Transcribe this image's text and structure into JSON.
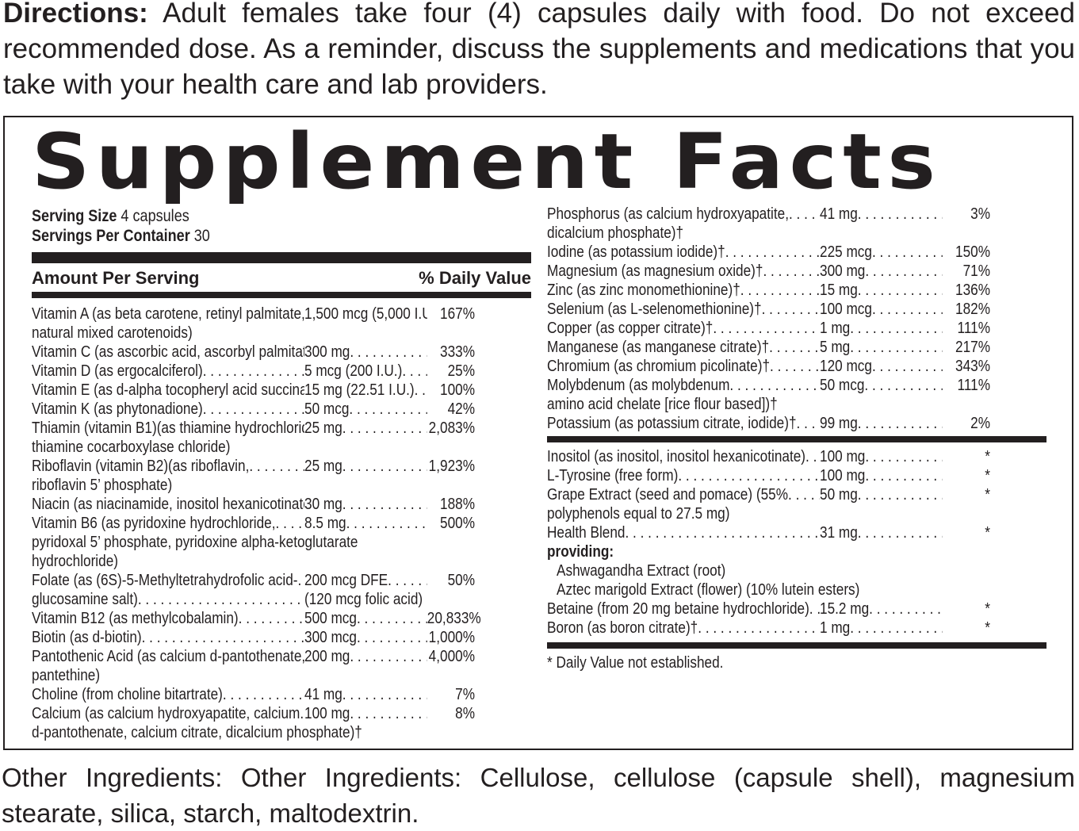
{
  "directions": {
    "label": "Directions:",
    "text": "Adult females  take four (4) capsules daily with food. Do not exceed recommended dose. As a reminder, discuss the supplements and medications that you take with your health care and lab  providers."
  },
  "panel": {
    "title": "Supplement Facts",
    "serving_size_label": "Serving Size",
    "serving_size_value": "4 capsules",
    "servings_label": "Servings Per Container",
    "servings_value": "30",
    "amount_header": "Amount Per Serving",
    "dv_header": "% Daily Value",
    "left_rows": [
      {
        "name": "Vitamin A (as beta carotene, retinyl palmitate,",
        "amount": "1,500 mcg (5,000 I.U.)",
        "dv": "167%",
        "cont": [
          "natural mixed carotenoids)"
        ]
      },
      {
        "name": "Vitamin C (as ascorbic acid, ascorbyl palmitate)",
        "amount": "300 mg",
        "dv": "333%",
        "cont": []
      },
      {
        "name": "Vitamin D (as ergocalciferol)",
        "amount": "5 mcg (200 I.U.)",
        "dv": "25%",
        "cont": []
      },
      {
        "name": "Vitamin E (as d-alpha tocopheryl acid succinate)",
        "amount": "15 mg (22.51 I.U.)",
        "dv": "100%",
        "cont": []
      },
      {
        "name": "Vitamin K (as phytonadione)",
        "amount": "50 mcg",
        "dv": "42%",
        "cont": []
      },
      {
        "name": "Thiamin (vitamin B1)(as thiamine hydrochloride,",
        "amount": "25 mg",
        "dv": "2,083%",
        "cont": [
          "thiamine cocarboxylase chloride)"
        ]
      },
      {
        "name": "Riboflavin (vitamin B2)(as riboflavin,",
        "amount": "25 mg",
        "dv": "1,923%",
        "cont": [
          "riboflavin 5’ phosphate)"
        ]
      },
      {
        "name": "Niacin (as niacinamide, inositol hexanicotinate)",
        "amount": "30 mg",
        "dv": "188%",
        "cont": []
      },
      {
        "name": "Vitamin B6 (as pyridoxine hydrochloride,",
        "amount": "8.5 mg",
        "dv": "500%",
        "cont": [
          "pyridoxal 5’ phosphate, pyridoxine alpha-ketoglutarate",
          "hydrochloride)"
        ]
      },
      {
        "name": "Folate (as (6S)-5-Methyltetrahydrofolic acid-",
        "amount": "200 mcg DFE",
        "dv": "50%",
        "cont": []
      },
      {
        "name": "glucosamine salt)",
        "amount": "(120 mcg folic acid)",
        "dv": "",
        "cont": []
      },
      {
        "name": "Vitamin B12 (as methylcobalamin)",
        "amount": "500 mcg",
        "dv": "20,833%",
        "cont": []
      },
      {
        "name": "Biotin (as d-biotin)",
        "amount": "300 mcg",
        "dv": "1,000%",
        "cont": []
      },
      {
        "name": "Pantothenic Acid (as calcium d-pantothenate,",
        "amount": "200 mg",
        "dv": "4,000%",
        "cont": [
          "pantethine)"
        ]
      },
      {
        "name": "Choline (from choline bitartrate)",
        "amount": "41 mg",
        "dv": "7%",
        "cont": []
      },
      {
        "name": "Calcium (as calcium hydroxyapatite, calcium",
        "amount": "100 mg",
        "dv": "8%",
        "cont": [
          "d-pantothenate, calcium citrate, dicalcium phosphate)†"
        ]
      }
    ],
    "right_rows_1": [
      {
        "name": "Phosphorus (as calcium hydroxyapatite,",
        "amount": "41 mg",
        "dv": "3%",
        "cont": [
          "dicalcium phosphate)†"
        ]
      },
      {
        "name": "Iodine (as potassium iodide)†",
        "amount": "225 mcg",
        "dv": "150%",
        "cont": []
      },
      {
        "name": "Magnesium (as magnesium oxide)†",
        "amount": "300 mg",
        "dv": "71%",
        "cont": []
      },
      {
        "name": "Zinc (as zinc monomethionine)†",
        "amount": "15 mg",
        "dv": "136%",
        "cont": []
      },
      {
        "name": "Selenium (as L-selenomethionine)†",
        "amount": "100 mcg",
        "dv": "182%",
        "cont": []
      },
      {
        "name": "Copper (as copper citrate)†",
        "amount": "1 mg",
        "dv": "111%",
        "cont": []
      },
      {
        "name": "Manganese (as manganese citrate)†",
        "amount": "5 mg",
        "dv": "217%",
        "cont": []
      },
      {
        "name": "Chromium (as chromium picolinate)†",
        "amount": "120 mcg",
        "dv": "343%",
        "cont": []
      },
      {
        "name": "Molybdenum (as molybdenum",
        "amount": "50 mcg",
        "dv": "111%",
        "cont": [
          "amino acid chelate [rice flour based])†"
        ]
      },
      {
        "name": "Potassium (as potassium citrate, iodide)†",
        "amount": "99 mg",
        "dv": "2%",
        "cont": []
      }
    ],
    "right_rows_2": [
      {
        "name": "Inositol (as inositol, inositol hexanicotinate)",
        "amount": "100 mg",
        "dv": "*",
        "cont": []
      },
      {
        "name": "L-Tyrosine (free form)",
        "amount": "100 mg",
        "dv": "*",
        "cont": []
      },
      {
        "name": "Grape Extract (seed and pomace) (55%",
        "amount": "50 mg",
        "dv": "*",
        "cont": [
          "polyphenols equal to 27.5 mg)"
        ]
      },
      {
        "name": "Health Blend",
        "amount": "31 mg",
        "dv": "*",
        "cont": []
      }
    ],
    "providing_label": "providing:",
    "providing_items": [
      "Ashwagandha Extract (root)",
      "Aztec marigold Extract (flower) (10% lutein esters)"
    ],
    "right_rows_3": [
      {
        "name": "Betaine (from 20 mg betaine hydrochloride)",
        "amount": "15.2 mg",
        "dv": "*",
        "cont": []
      },
      {
        "name": "Boron (as boron citrate)†",
        "amount": "1 mg",
        "dv": "*",
        "cont": []
      }
    ],
    "footnote": "* Daily Value not established."
  },
  "other_ingredients": "Other Ingredients: Other Ingredients:  Cellulose, cellulose (capsule shell), magnesium stearate, silica, starch, maltodextrin."
}
